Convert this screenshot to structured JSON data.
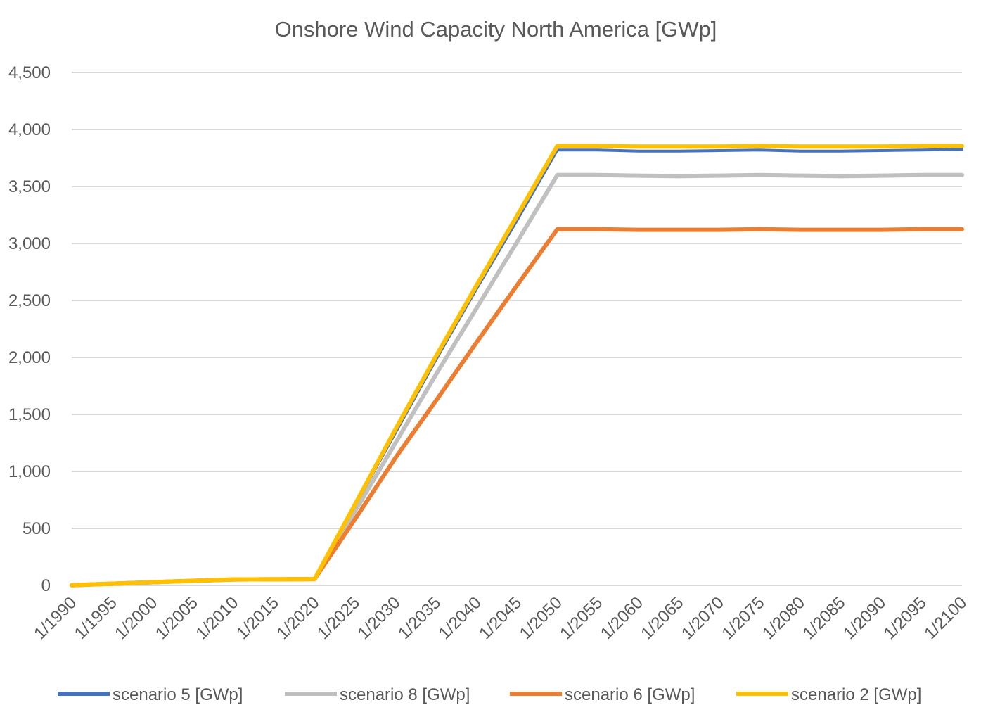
{
  "chart_data": {
    "type": "line",
    "title": "Onshore Wind Capacity North America [GWp]",
    "xlabel": "",
    "ylabel": "",
    "ylim": [
      0,
      4500
    ],
    "yticks": [
      0,
      500,
      1000,
      1500,
      2000,
      2500,
      3000,
      3500,
      4000,
      4500
    ],
    "ytick_labels": [
      "0",
      "500",
      "1,000",
      "1,500",
      "2,000",
      "2,500",
      "3,000",
      "3,500",
      "4,000",
      "4,500"
    ],
    "categories": [
      "1/1990",
      "1/1995",
      "1/2000",
      "1/2005",
      "1/2010",
      "1/2015",
      "1/2020",
      "1/2025",
      "1/2030",
      "1/2035",
      "1/2040",
      "1/2045",
      "1/2050",
      "1/2055",
      "1/2060",
      "1/2065",
      "1/2070",
      "1/2075",
      "1/2080",
      "1/2085",
      "1/2090",
      "1/2095",
      "1/2100"
    ],
    "grid": true,
    "legend_position": "bottom",
    "series": [
      {
        "name": "scenario 5 [GWp]",
        "color": "#4472C4",
        "values": [
          2,
          15,
          28,
          40,
          52,
          53,
          55,
          700,
          1340,
          1980,
          2600,
          3200,
          3820,
          3820,
          3810,
          3810,
          3815,
          3820,
          3810,
          3810,
          3815,
          3820,
          3825
        ]
      },
      {
        "name": "scenario 8 [GWp]",
        "color": "#C0C0C0",
        "values": [
          2,
          15,
          28,
          40,
          52,
          53,
          55,
          650,
          1250,
          1850,
          2430,
          3010,
          3600,
          3600,
          3595,
          3590,
          3595,
          3600,
          3595,
          3590,
          3595,
          3600,
          3600
        ]
      },
      {
        "name": "scenario 6 [GWp]",
        "color": "#ED7D31",
        "values": [
          2,
          15,
          28,
          40,
          52,
          53,
          55,
          580,
          1120,
          1620,
          2130,
          2630,
          3125,
          3125,
          3120,
          3120,
          3120,
          3125,
          3120,
          3120,
          3120,
          3125,
          3125
        ]
      },
      {
        "name": "scenario 2 [GWp]",
        "color": "#FFC000",
        "values": [
          2,
          15,
          28,
          40,
          52,
          53,
          55,
          710,
          1370,
          2010,
          2630,
          3240,
          3855,
          3855,
          3850,
          3850,
          3850,
          3855,
          3850,
          3850,
          3850,
          3855,
          3855
        ]
      }
    ]
  }
}
